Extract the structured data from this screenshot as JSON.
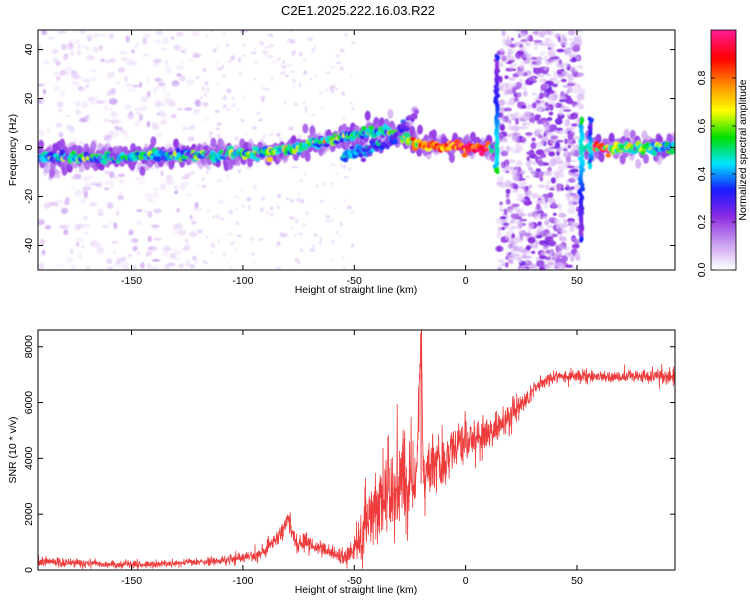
{
  "title": "C2E1.2025.222.16.03.R22",
  "chart_data": [
    {
      "type": "heatmap",
      "title": "C2E1.2025.222.16.03.R22",
      "xlabel": "Height of straight line (km)",
      "ylabel": "Frequency (Hz)",
      "xlim": [
        -192,
        94
      ],
      "ylim": [
        -50,
        48
      ],
      "xticks": [
        -150,
        -100,
        -50,
        0,
        50
      ],
      "yticks": [
        -40,
        -20,
        0,
        20,
        40
      ],
      "colorbar": {
        "label": "Normalized spectral amplitude",
        "range": [
          0,
          1
        ],
        "ticks": [
          0.0,
          0.2,
          0.4,
          0.6,
          0.8
        ],
        "colors": [
          "#ffffff",
          "#c89af0",
          "#8a2be2",
          "#1a1aff",
          "#00e5ff",
          "#00e000",
          "#ffff00",
          "#ff8c00",
          "#ff0000",
          "#ff1a8c"
        ]
      },
      "ridge": {
        "x": [
          -192,
          -170,
          -150,
          -130,
          -110,
          -100,
          -90,
          -80,
          -70,
          -60,
          -50,
          -40,
          -30,
          -25,
          -20,
          -10,
          0,
          10,
          12,
          14,
          55,
          57,
          60,
          70,
          80,
          94
        ],
        "frequency": [
          -4,
          -4,
          -4,
          -3,
          -3,
          -2.5,
          -2,
          -1,
          1,
          3,
          5,
          7,
          5,
          3,
          1,
          0,
          0,
          0,
          0,
          0,
          0,
          0,
          0,
          0,
          0,
          0
        ],
        "amplitude": [
          0.4,
          0.42,
          0.45,
          0.4,
          0.42,
          0.45,
          0.5,
          0.55,
          0.5,
          0.45,
          0.4,
          0.45,
          0.5,
          0.6,
          0.75,
          0.85,
          0.95,
          0.85,
          0.4,
          0.2,
          0.4,
          0.9,
          0.8,
          0.5,
          0.5,
          0.45
        ]
      },
      "secondary_ridge": {
        "x": [
          -55,
          -45,
          -35,
          -28,
          -22
        ],
        "frequency": [
          -3,
          -1,
          2,
          8,
          14
        ],
        "amplitude": [
          0.4,
          0.35,
          0.3,
          0.25,
          0.2
        ]
      },
      "noise_bands": [
        {
          "x_range": [
            -192,
            -120
          ],
          "level": "low"
        },
        {
          "x_range": [
            15,
            52
          ],
          "level": "high"
        }
      ],
      "spikes": [
        {
          "x": 14,
          "freq_range": [
            -10,
            38
          ]
        },
        {
          "x": 52,
          "freq_range": [
            -38,
            12
          ]
        },
        {
          "x": 56,
          "freq_range": [
            -8,
            12
          ]
        }
      ]
    },
    {
      "type": "line",
      "xlabel": "Height of straight line (km)",
      "ylabel": "SNR (10 * v/v)",
      "xlim": [
        -192,
        94
      ],
      "ylim": [
        0,
        8600
      ],
      "xticks": [
        -150,
        -100,
        -50,
        0,
        50
      ],
      "yticks": [
        0,
        2000,
        4000,
        6000,
        8000
      ],
      "series": [
        {
          "color": "#ee3b3b",
          "x": [
            -192,
            -180,
            -170,
            -160,
            -150,
            -140,
            -130,
            -120,
            -110,
            -100,
            -92,
            -88,
            -84,
            -82,
            -80,
            -76,
            -70,
            -64,
            -58,
            -54,
            -50,
            -46,
            -42,
            -38,
            -34,
            -30,
            -26,
            -22,
            -20,
            -19,
            -17,
            -14,
            -10,
            -6,
            -2,
            2,
            6,
            10,
            14,
            18,
            22,
            26,
            30,
            34,
            40,
            50,
            60,
            70,
            80,
            90,
            94
          ],
          "values": [
            300,
            260,
            230,
            200,
            190,
            200,
            240,
            280,
            330,
            420,
            600,
            900,
            1200,
            1500,
            1900,
            1000,
            900,
            750,
            550,
            420,
            700,
            1300,
            2100,
            2600,
            2700,
            2900,
            3200,
            3100,
            8500,
            3600,
            3700,
            3900,
            4000,
            4300,
            4500,
            4600,
            4800,
            4900,
            5000,
            5400,
            5700,
            6000,
            6400,
            6700,
            6900,
            6950,
            6950,
            6900,
            6950,
            6900,
            6950
          ],
          "noise": [
            160,
            140,
            130,
            120,
            110,
            110,
            120,
            130,
            140,
            170,
            200,
            230,
            260,
            300,
            320,
            260,
            240,
            200,
            200,
            230,
            500,
            900,
            1100,
            1300,
            1400,
            1400,
            1400,
            1300,
            700,
            1100,
            1000,
            900,
            900,
            800,
            700,
            700,
            700,
            650,
            600,
            500,
            450,
            350,
            300,
            250,
            200,
            180,
            170,
            170,
            200,
            260,
            260
          ]
        }
      ]
    }
  ]
}
